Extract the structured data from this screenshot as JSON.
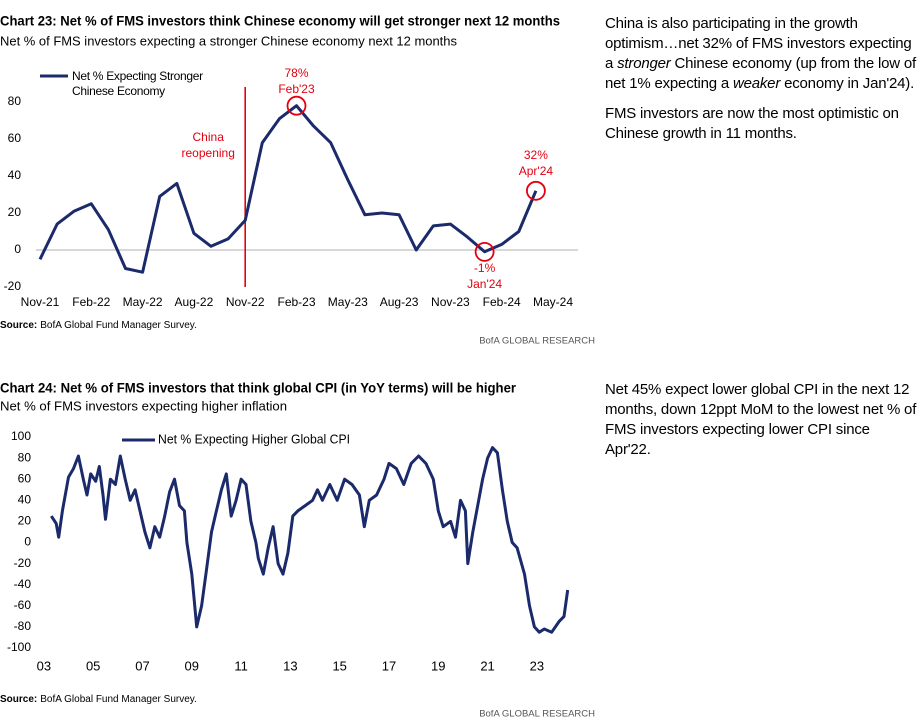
{
  "chart_data": [
    {
      "type": "line",
      "title": "Chart 23: Net % of FMS investors think Chinese economy will get stronger next 12 months",
      "subtitle": "Net % of FMS investors expecting a stronger Chinese economy next 12 months",
      "categories": [
        "Nov-21",
        null,
        null,
        "Feb-22",
        null,
        null,
        "May-22",
        null,
        null,
        "Aug-22",
        null,
        null,
        "Nov-22",
        null,
        null,
        "Feb-23",
        null,
        null,
        "May-23",
        null,
        null,
        "Aug-23",
        null,
        null,
        "Nov-23",
        null,
        null,
        "Feb-24",
        null,
        null,
        "May-24"
      ],
      "series": [
        {
          "name": "Net % Expecting Stronger Chinese Economy",
          "color": "#1b2a6b",
          "values": [
            -5,
            14,
            21,
            25,
            11,
            -10,
            -12,
            29,
            36,
            9,
            2,
            6,
            16,
            58,
            71,
            78,
            67,
            58,
            38,
            19,
            20,
            19,
            0,
            13,
            14,
            7,
            -1,
            3,
            10,
            32,
            null
          ]
        }
      ],
      "ylim": [
        -20,
        90
      ],
      "yticks": [
        -20,
        0,
        20,
        40,
        60,
        80
      ],
      "annotations": [
        [
          "China",
          "reopening"
        ],
        [
          "78%",
          "Feb'23"
        ],
        [
          "32%",
          "Apr'24"
        ],
        [
          "-1%",
          "Jan'24"
        ]
      ],
      "annotation_color": "#e3000f",
      "source_label": "Source:",
      "source": "BofA Global Fund Manager Survey.",
      "credit": "BofA GLOBAL RESEARCH"
    },
    {
      "type": "line",
      "title": "Chart 24: Net % of FMS investors that think global CPI (in YoY terms) will be higher",
      "subtitle": "Net % of FMS investors expecting higher inflation",
      "x": [
        2003.3,
        2003.5,
        2003.6,
        2003.75,
        2004.0,
        2004.2,
        2004.4,
        2004.6,
        2004.75,
        2004.9,
        2005.1,
        2005.25,
        2005.4,
        2005.5,
        2005.7,
        2005.9,
        2006.1,
        2006.3,
        2006.5,
        2006.7,
        2006.9,
        2007.1,
        2007.3,
        2007.5,
        2007.7,
        2007.9,
        2008.1,
        2008.3,
        2008.5,
        2008.7,
        2008.8,
        2009.0,
        2009.2,
        2009.4,
        2009.6,
        2009.8,
        2010.0,
        2010.2,
        2010.4,
        2010.6,
        2010.8,
        2011.0,
        2011.2,
        2011.4,
        2011.6,
        2011.7,
        2011.9,
        2012.1,
        2012.3,
        2012.5,
        2012.7,
        2012.9,
        2013.1,
        2013.3,
        2013.6,
        2013.9,
        2014.1,
        2014.3,
        2014.6,
        2014.9,
        2015.2,
        2015.5,
        2015.8,
        2016.0,
        2016.2,
        2016.5,
        2016.8,
        2017.0,
        2017.3,
        2017.6,
        2017.9,
        2018.2,
        2018.5,
        2018.8,
        2019.0,
        2019.2,
        2019.5,
        2019.7,
        2019.9,
        2020.1,
        2020.2,
        2020.4,
        2020.6,
        2020.8,
        2021.0,
        2021.2,
        2021.4,
        2021.6,
        2021.8,
        2022.0,
        2022.2,
        2022.5,
        2022.7,
        2022.9,
        2023.1,
        2023.3,
        2023.6,
        2023.9,
        2024.1,
        2024.25
      ],
      "series": [
        {
          "name": "Net % Expecting Higher Global CPI",
          "color": "#1b2a6b",
          "values": [
            25,
            18,
            5,
            30,
            62,
            70,
            82,
            60,
            45,
            65,
            58,
            72,
            45,
            22,
            60,
            55,
            82,
            60,
            40,
            50,
            30,
            10,
            -5,
            15,
            5,
            25,
            48,
            60,
            35,
            30,
            0,
            -30,
            -80,
            -60,
            -25,
            10,
            30,
            50,
            65,
            25,
            40,
            60,
            55,
            20,
            0,
            -15,
            -30,
            -5,
            15,
            -20,
            -30,
            -10,
            25,
            30,
            35,
            40,
            50,
            40,
            55,
            40,
            60,
            55,
            45,
            15,
            40,
            45,
            60,
            75,
            70,
            55,
            75,
            82,
            75,
            60,
            30,
            15,
            20,
            5,
            40,
            30,
            -20,
            10,
            35,
            60,
            80,
            90,
            85,
            50,
            20,
            0,
            -5,
            -30,
            -60,
            -80,
            -85,
            -82,
            -85,
            -75,
            -70,
            -45
          ]
        }
      ],
      "xlim": [
        2002.68,
        2024.75
      ],
      "xticks": [
        {
          "value": 2003,
          "label": "03"
        },
        {
          "value": 2005,
          "label": "05"
        },
        {
          "value": 2007,
          "label": "07"
        },
        {
          "value": 2009,
          "label": "09"
        },
        {
          "value": 2011,
          "label": "11"
        },
        {
          "value": 2013,
          "label": "13"
        },
        {
          "value": 2015,
          "label": "15"
        },
        {
          "value": 2017,
          "label": "17"
        },
        {
          "value": 2019,
          "label": "19"
        },
        {
          "value": 2021,
          "label": "21"
        },
        {
          "value": 2023,
          "label": "23"
        }
      ],
      "ylim": [
        -100,
        100
      ],
      "yticks": [
        -100,
        -80,
        -60,
        -40,
        -20,
        0,
        20,
        40,
        60,
        80,
        100
      ],
      "source_label": "Source:",
      "source": "BofA Global Fund Manager Survey.",
      "credit": "BofA GLOBAL RESEARCH"
    }
  ],
  "notes": [
    [
      [
        "China is also participating in the growth optimism…net 32% of FMS investors expecting a ",
        {
          "text": "stronger",
          "style": "italic"
        },
        " Chinese economy (up from the low of net 1% expecting a ",
        {
          "text": "weaker",
          "style": "italic"
        },
        " economy in Jan'24)."
      ],
      [
        "FMS investors are now the most optimistic on Chinese growth in 11 months."
      ]
    ],
    [
      [
        "Net 45% expect lower global CPI in the next 12 months, down 12ppt MoM to the lowest net % of FMS investors expecting lower CPI since Apr'22."
      ]
    ]
  ]
}
